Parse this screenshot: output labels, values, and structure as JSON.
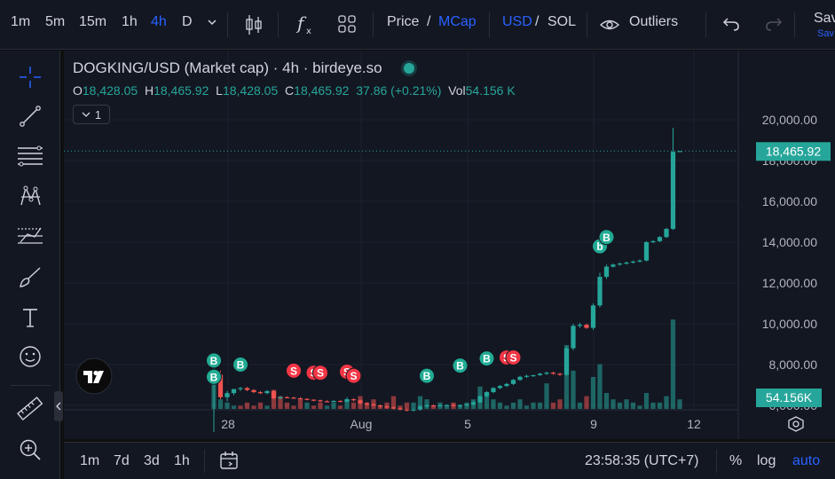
{
  "toolbar": {
    "intervals": [
      "1m",
      "5m",
      "15m",
      "1h",
      "4h",
      "D"
    ],
    "active_interval": "4h",
    "price_label": "Price",
    "slash": "/",
    "mcap_label": "MCap",
    "usd_label": "USD",
    "sol_label": "SOL",
    "outliers_label": "Outliers",
    "save_label": "Sav",
    "save_sub": "Sav"
  },
  "legend": {
    "title": "DOGKING/USD (Market cap) · 4h · birdeye.so",
    "o_label": "O",
    "o_value": "18,428.05",
    "h_label": "H",
    "h_value": "18,465.92",
    "l_label": "L",
    "l_value": "18,428.05",
    "c_label": "C",
    "c_value": "18,465.92",
    "change": "37.86 (+0.21%)",
    "vol_label": "Vol",
    "vol_value": "54.156 K",
    "collapse_count": "1"
  },
  "price_axis": {
    "ticks": [
      "20,000.00",
      "18,000.00",
      "16,000.00",
      "14,000.00",
      "12,000.00",
      "10,000.00",
      "8,000.00",
      "6,000.00"
    ],
    "last_price_tag": "18,465.92",
    "volume_tag": "54.156K"
  },
  "time_axis": {
    "ticks": [
      "28",
      "Aug",
      "5",
      "9",
      "12"
    ]
  },
  "bottom": {
    "ranges": [
      "1m",
      "7d",
      "3d",
      "1h"
    ],
    "clock": "23:58:35 (UTC+7)",
    "percent_label": "%",
    "log_label": "log",
    "auto_label": "auto"
  },
  "colors": {
    "up": "#26a69a",
    "down": "#ef5350",
    "accent": "#2962ff",
    "buy_marker": "#22ab94",
    "sell_marker": "#f23645"
  },
  "chart_data": {
    "type": "candlestick",
    "symbol": "DOGKING/USD (Market cap)",
    "interval": "4h",
    "ylim": [
      4600,
      20600
    ],
    "x_ticks": [
      "28",
      "Aug",
      "5",
      "9",
      "12"
    ],
    "candles": [
      [
        7400,
        8200,
        4700,
        7500
      ],
      [
        7500,
        7700,
        6300,
        6400
      ],
      [
        6400,
        6700,
        6200,
        6600
      ],
      [
        6600,
        6800,
        6500,
        6800
      ],
      [
        6800,
        6900,
        6700,
        6850
      ],
      [
        6850,
        6900,
        6700,
        6750
      ],
      [
        6750,
        6800,
        6600,
        6650
      ],
      [
        6650,
        6700,
        6550,
        6600
      ],
      [
        6600,
        6750,
        6550,
        6700
      ],
      [
        6700,
        6750,
        6300,
        6350
      ],
      [
        6350,
        6450,
        6300,
        6400
      ],
      [
        6400,
        6450,
        6350,
        6380
      ],
      [
        6380,
        6420,
        6320,
        6350
      ],
      [
        6350,
        6400,
        6300,
        6320
      ],
      [
        6320,
        6350,
        6250,
        6280
      ],
      [
        6280,
        6300,
        6200,
        6250
      ],
      [
        6250,
        6280,
        6150,
        6200
      ],
      [
        6200,
        6250,
        6150,
        6180
      ],
      [
        6180,
        6250,
        6150,
        6220
      ],
      [
        6220,
        6250,
        6150,
        6180
      ],
      [
        6180,
        6400,
        6150,
        6300
      ],
      [
        6300,
        6350,
        6200,
        6250
      ],
      [
        6250,
        6280,
        6050,
        6100
      ],
      [
        6100,
        6150,
        6000,
        6050
      ],
      [
        6050,
        6100,
        5950,
        6000
      ],
      [
        6000,
        6050,
        5900,
        5950
      ],
      [
        5950,
        6000,
        5850,
        5900
      ],
      [
        5900,
        5950,
        5800,
        5850
      ],
      [
        5850,
        5900,
        5750,
        5800
      ],
      [
        5800,
        5850,
        5700,
        5750
      ],
      [
        5750,
        5850,
        5700,
        5800
      ],
      [
        5800,
        6000,
        5750,
        5950
      ],
      [
        5950,
        6050,
        5900,
        6000
      ],
      [
        6000,
        6050,
        5950,
        5980
      ],
      [
        5980,
        6050,
        5950,
        6000
      ],
      [
        6000,
        6050,
        5950,
        6020
      ],
      [
        6020,
        6100,
        5950,
        5980
      ],
      [
        5980,
        6050,
        5900,
        6020
      ],
      [
        6020,
        6100,
        5980,
        6050
      ],
      [
        6050,
        6200,
        6000,
        6150
      ],
      [
        6150,
        6500,
        6100,
        6450
      ],
      [
        6450,
        6700,
        6400,
        6650
      ],
      [
        6650,
        6900,
        6600,
        6850
      ],
      [
        6850,
        7000,
        6800,
        6950
      ],
      [
        6950,
        7100,
        6900,
        7050
      ],
      [
        7050,
        7300,
        7000,
        7250
      ],
      [
        7250,
        7450,
        7200,
        7400
      ],
      [
        7400,
        7500,
        7350,
        7450
      ],
      [
        7450,
        7500,
        7400,
        7480
      ],
      [
        7480,
        7600,
        7450,
        7550
      ],
      [
        7550,
        7650,
        7500,
        7600
      ],
      [
        7600,
        7650,
        7500,
        7550
      ],
      [
        7550,
        7600,
        7450,
        7500
      ],
      [
        7500,
        8900,
        7450,
        8800
      ],
      [
        8800,
        10000,
        8700,
        9900
      ],
      [
        9900,
        10050,
        9800,
        9950
      ],
      [
        9950,
        10000,
        9750,
        9800
      ],
      [
        9800,
        11000,
        9700,
        10900
      ],
      [
        10900,
        12500,
        10800,
        12300
      ],
      [
        12300,
        12900,
        12200,
        12800
      ],
      [
        12800,
        12950,
        12750,
        12900
      ],
      [
        12900,
        13000,
        12850,
        12950
      ],
      [
        12950,
        13050,
        12900,
        13000
      ],
      [
        13000,
        13100,
        12950,
        13050
      ],
      [
        13050,
        13150,
        13000,
        13100
      ],
      [
        13100,
        14050,
        13050,
        14000
      ],
      [
        14000,
        14100,
        13950,
        14050
      ],
      [
        14050,
        14300,
        14000,
        14250
      ],
      [
        14250,
        14700,
        14200,
        14650
      ],
      [
        14650,
        19600,
        14600,
        18428
      ],
      [
        18428,
        18466,
        18428,
        18466
      ]
    ],
    "volume": [
      [
        9,
        "up"
      ],
      [
        3,
        "up"
      ],
      [
        2,
        "up"
      ],
      [
        1,
        "up"
      ],
      [
        1,
        "down"
      ],
      [
        2,
        "down"
      ],
      [
        1,
        "down"
      ],
      [
        2,
        "down"
      ],
      [
        1,
        "up"
      ],
      [
        6,
        "down"
      ],
      [
        4,
        "down"
      ],
      [
        2,
        "down"
      ],
      [
        1,
        "down"
      ],
      [
        3,
        "down"
      ],
      [
        2,
        "up"
      ],
      [
        1,
        "down"
      ],
      [
        2,
        "down"
      ],
      [
        1,
        "up"
      ],
      [
        2,
        "up"
      ],
      [
        1,
        "down"
      ],
      [
        3,
        "up"
      ],
      [
        2,
        "down"
      ],
      [
        4,
        "down"
      ],
      [
        2,
        "down"
      ],
      [
        3,
        "down"
      ],
      [
        1,
        "down"
      ],
      [
        2,
        "down"
      ],
      [
        4,
        "down"
      ],
      [
        1,
        "down"
      ],
      [
        2,
        "down"
      ],
      [
        2,
        "up"
      ],
      [
        4,
        "up"
      ],
      [
        3,
        "up"
      ],
      [
        1,
        "down"
      ],
      [
        2,
        "up"
      ],
      [
        1,
        "up"
      ],
      [
        2,
        "down"
      ],
      [
        1,
        "up"
      ],
      [
        2,
        "up"
      ],
      [
        3,
        "up"
      ],
      [
        7,
        "up"
      ],
      [
        5,
        "up"
      ],
      [
        3,
        "up"
      ],
      [
        2,
        "up"
      ],
      [
        1,
        "up"
      ],
      [
        2,
        "up"
      ],
      [
        3,
        "up"
      ],
      [
        1,
        "up"
      ],
      [
        2,
        "up"
      ],
      [
        2,
        "up"
      ],
      [
        8,
        "up"
      ],
      [
        2,
        "down"
      ],
      [
        3,
        "down"
      ],
      [
        20,
        "up"
      ],
      [
        12,
        "up"
      ],
      [
        2,
        "up"
      ],
      [
        4,
        "down"
      ],
      [
        10,
        "up"
      ],
      [
        14,
        "up"
      ],
      [
        5,
        "up"
      ],
      [
        3,
        "up"
      ],
      [
        2,
        "up"
      ],
      [
        3,
        "up"
      ],
      [
        2,
        "up"
      ],
      [
        1,
        "up"
      ],
      [
        5,
        "up"
      ],
      [
        2,
        "up"
      ],
      [
        2,
        "up"
      ],
      [
        4,
        "up"
      ],
      [
        28,
        "up"
      ],
      [
        3,
        "up"
      ]
    ],
    "markers": [
      {
        "label": "B",
        "kind": "buy",
        "bar": 0,
        "value": 8200
      },
      {
        "label": "B",
        "kind": "buy",
        "bar": 0,
        "value": 7400
      },
      {
        "label": "B",
        "kind": "buy",
        "bar": 4,
        "value": 8000
      },
      {
        "label": "S",
        "kind": "sell",
        "bar": 12,
        "value": 7700
      },
      {
        "label": "S",
        "kind": "sell",
        "bar": 15,
        "value": 7600
      },
      {
        "label": "S",
        "kind": "sell",
        "bar": 16,
        "value": 7600
      },
      {
        "label": "S",
        "kind": "sell",
        "bar": 20,
        "value": 7650
      },
      {
        "label": "S",
        "kind": "sell",
        "bar": 21,
        "value": 7450
      },
      {
        "label": "B",
        "kind": "buy",
        "bar": 32,
        "value": 7450
      },
      {
        "label": "B",
        "kind": "buy",
        "bar": 37,
        "value": 7950
      },
      {
        "label": "B",
        "kind": "buy",
        "bar": 41,
        "value": 8300
      },
      {
        "label": "S",
        "kind": "sell",
        "bar": 44,
        "value": 8350
      },
      {
        "label": "S",
        "kind": "sell",
        "bar": 45,
        "value": 8350
      },
      {
        "label": "b",
        "kind": "buy",
        "bar": 58,
        "value": 13800
      },
      {
        "label": "B",
        "kind": "buy",
        "bar": 59,
        "value": 14250
      }
    ]
  }
}
